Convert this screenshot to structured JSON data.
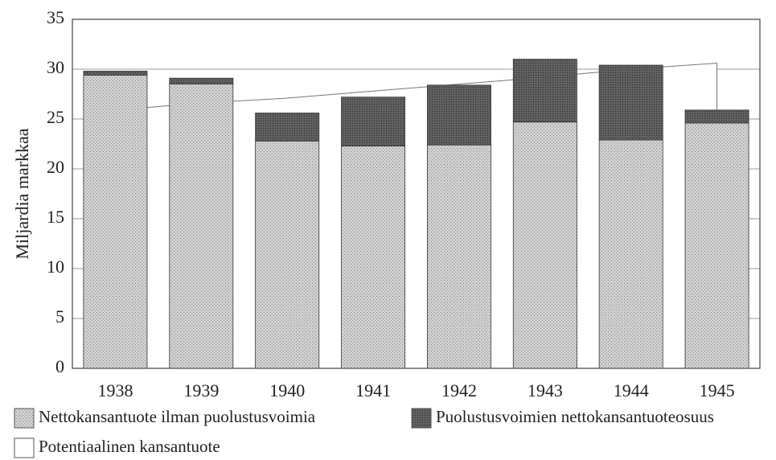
{
  "chart_data": {
    "type": "bar",
    "stacked": true,
    "ylabel": "Miljardia markkaa",
    "categories": [
      "1938",
      "1939",
      "1940",
      "1941",
      "1942",
      "1943",
      "1944",
      "1945"
    ],
    "series": [
      {
        "name": "Nettokansantuote ilman puolustusvoimia",
        "color": "#c9c9c9",
        "values": [
          29.4,
          28.5,
          22.8,
          22.3,
          22.4,
          24.7,
          22.9,
          24.6
        ]
      },
      {
        "name": "Puolustusvoimien nettokansantuoteosuus",
        "color": "#5c5c5c",
        "values": [
          0.4,
          0.6,
          2.8,
          4.9,
          6.0,
          6.3,
          7.5,
          1.3
        ]
      }
    ],
    "line": {
      "name": "Potentiaalinen kansantuote",
      "color": "#ffffff",
      "stroke": "#777777",
      "values": [
        25.9,
        26.6,
        27.1,
        27.8,
        28.5,
        29.2,
        30.0,
        30.6
      ]
    },
    "ylim": [
      0,
      35
    ],
    "yticks": [
      0,
      5,
      10,
      15,
      20,
      25,
      30,
      35
    ],
    "grid": true
  }
}
